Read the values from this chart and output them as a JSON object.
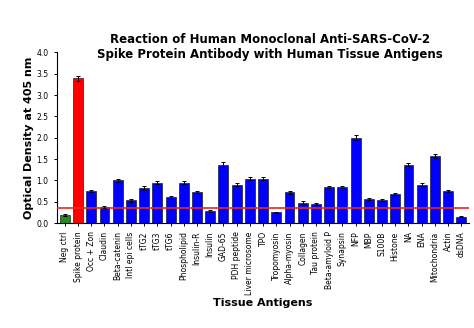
{
  "categories": [
    "Neg ctrl",
    "Spike protein",
    "Occ + Zon",
    "Claudin",
    "Beta-catenin",
    "Intl epi cells",
    "tTG2",
    "tTG3",
    "tTG6",
    "Phospholipid",
    "Insulin-R",
    "Insulin",
    "GAD-65",
    "PDH peptide",
    "Liver microsome",
    "TPO",
    "Tropomyosin",
    "Alpha-myosin",
    "Collagen",
    "Tau protein",
    "Beta-amyloid P",
    "Synapsin",
    "NFP",
    "MBP",
    "S100B",
    "Histone",
    "NA",
    "ENA",
    "Mitochondria",
    "Actin",
    "dsDNA"
  ],
  "values": [
    0.19,
    3.4,
    0.75,
    0.38,
    1.0,
    0.53,
    0.82,
    0.95,
    0.6,
    0.95,
    0.73,
    0.28,
    1.37,
    0.9,
    1.04,
    1.04,
    0.25,
    0.72,
    0.48,
    0.44,
    0.85,
    0.85,
    2.0,
    0.57,
    0.54,
    0.68,
    1.37,
    0.9,
    1.57,
    0.75,
    0.15
  ],
  "errors": [
    0.02,
    0.06,
    0.03,
    0.02,
    0.04,
    0.03,
    0.04,
    0.04,
    0.03,
    0.04,
    0.03,
    0.02,
    0.05,
    0.04,
    0.04,
    0.04,
    0.02,
    0.03,
    0.03,
    0.02,
    0.03,
    0.03,
    0.06,
    0.02,
    0.02,
    0.03,
    0.04,
    0.03,
    0.05,
    0.03,
    0.02
  ],
  "bar_colors": [
    "#228B22",
    "#FF0000",
    "#0000FF",
    "#0000FF",
    "#0000FF",
    "#0000FF",
    "#0000FF",
    "#0000FF",
    "#0000FF",
    "#0000FF",
    "#0000FF",
    "#0000FF",
    "#0000FF",
    "#0000FF",
    "#0000FF",
    "#0000FF",
    "#0000FF",
    "#0000FF",
    "#0000FF",
    "#0000FF",
    "#0000FF",
    "#0000FF",
    "#0000FF",
    "#0000FF",
    "#0000FF",
    "#0000FF",
    "#0000FF",
    "#0000FF",
    "#0000FF",
    "#0000FF",
    "#0000FF"
  ],
  "title_line1": "Reaction of Human Monoclonal Anti-SARS-CoV-2",
  "title_line2": "Spike Protein Antibody with Human Tissue Antigens",
  "xlabel": "Tissue Antigens",
  "ylabel": "Optical Density at 405 nm",
  "ylim": [
    0.0,
    4.0
  ],
  "yticks": [
    0.0,
    0.5,
    1.0,
    1.5,
    2.0,
    2.5,
    3.0,
    3.5,
    4.0
  ],
  "hline_y": 0.35,
  "hline_color": "#EE2222",
  "background_color": "#FFFFFF",
  "title_fontsize": 8.5,
  "axis_label_fontsize": 8,
  "tick_fontsize": 5.5,
  "bar_width": 0.75,
  "edgecolor": "#000000"
}
